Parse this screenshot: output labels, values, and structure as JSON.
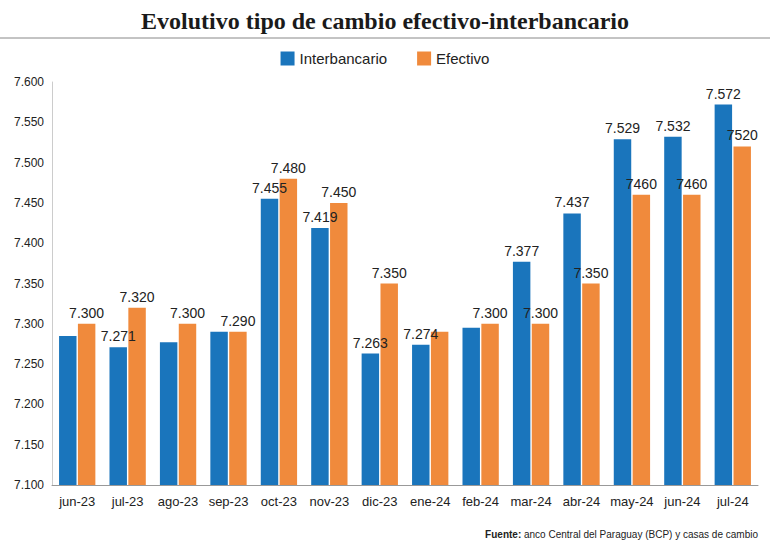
{
  "chart_data": {
    "type": "bar",
    "title": "Evolutivo tipo de cambio efectivo-interbancario",
    "source": "Fuente: anco Central del Paraguay (BCP) y casas de cambio",
    "categories": [
      "jun-23",
      "jul-23",
      "ago-23",
      "sep-23",
      "oct-23",
      "nov-23",
      "dic-23",
      "ene-24",
      "feb-24",
      "mar-24",
      "abr-24",
      "may-24",
      "jun-24",
      "jul-24"
    ],
    "series": [
      {
        "name": "Interbancario",
        "color": "#1a75bc",
        "values": [
          7285,
          7271,
          7277,
          7290,
          7455,
          7419,
          7263,
          7274,
          7295,
          7377,
          7437,
          7529,
          7532,
          7572
        ],
        "value_labels": [
          null,
          "7.271",
          null,
          null,
          "7.455",
          "7.419",
          "7.263",
          "7.274",
          null,
          "7.377",
          "7.437",
          "7.529",
          "7.532",
          "7.572"
        ]
      },
      {
        "name": "Efectivo",
        "color": "#f08a3c",
        "values": [
          7300,
          7320,
          7300,
          7290,
          7480,
          7450,
          7350,
          7290,
          7300,
          7300,
          7350,
          7460,
          7460,
          7520
        ],
        "value_labels": [
          "7.300",
          "7.320",
          "7.300",
          "7.290",
          "7.480",
          "7.450",
          "7.350",
          null,
          "7.300",
          "7.300",
          "7.350",
          "7460",
          "7460",
          "7520"
        ]
      }
    ],
    "ylim": [
      7100,
      7600
    ],
    "yticks": [
      {
        "value": 7100,
        "label": "7.100"
      },
      {
        "value": 7150,
        "label": "7.150"
      },
      {
        "value": 7200,
        "label": "7.200"
      },
      {
        "value": 7250,
        "label": "7.250"
      },
      {
        "value": 7300,
        "label": "7.300"
      },
      {
        "value": 7350,
        "label": "7.350"
      },
      {
        "value": 7400,
        "label": "7.400"
      },
      {
        "value": 7450,
        "label": "7.450"
      },
      {
        "value": 7500,
        "label": "7.500"
      },
      {
        "value": 7550,
        "label": "7.550"
      },
      {
        "value": 7600,
        "label": "7.600"
      }
    ],
    "grid": false,
    "legend": "top",
    "data_labels": true
  }
}
